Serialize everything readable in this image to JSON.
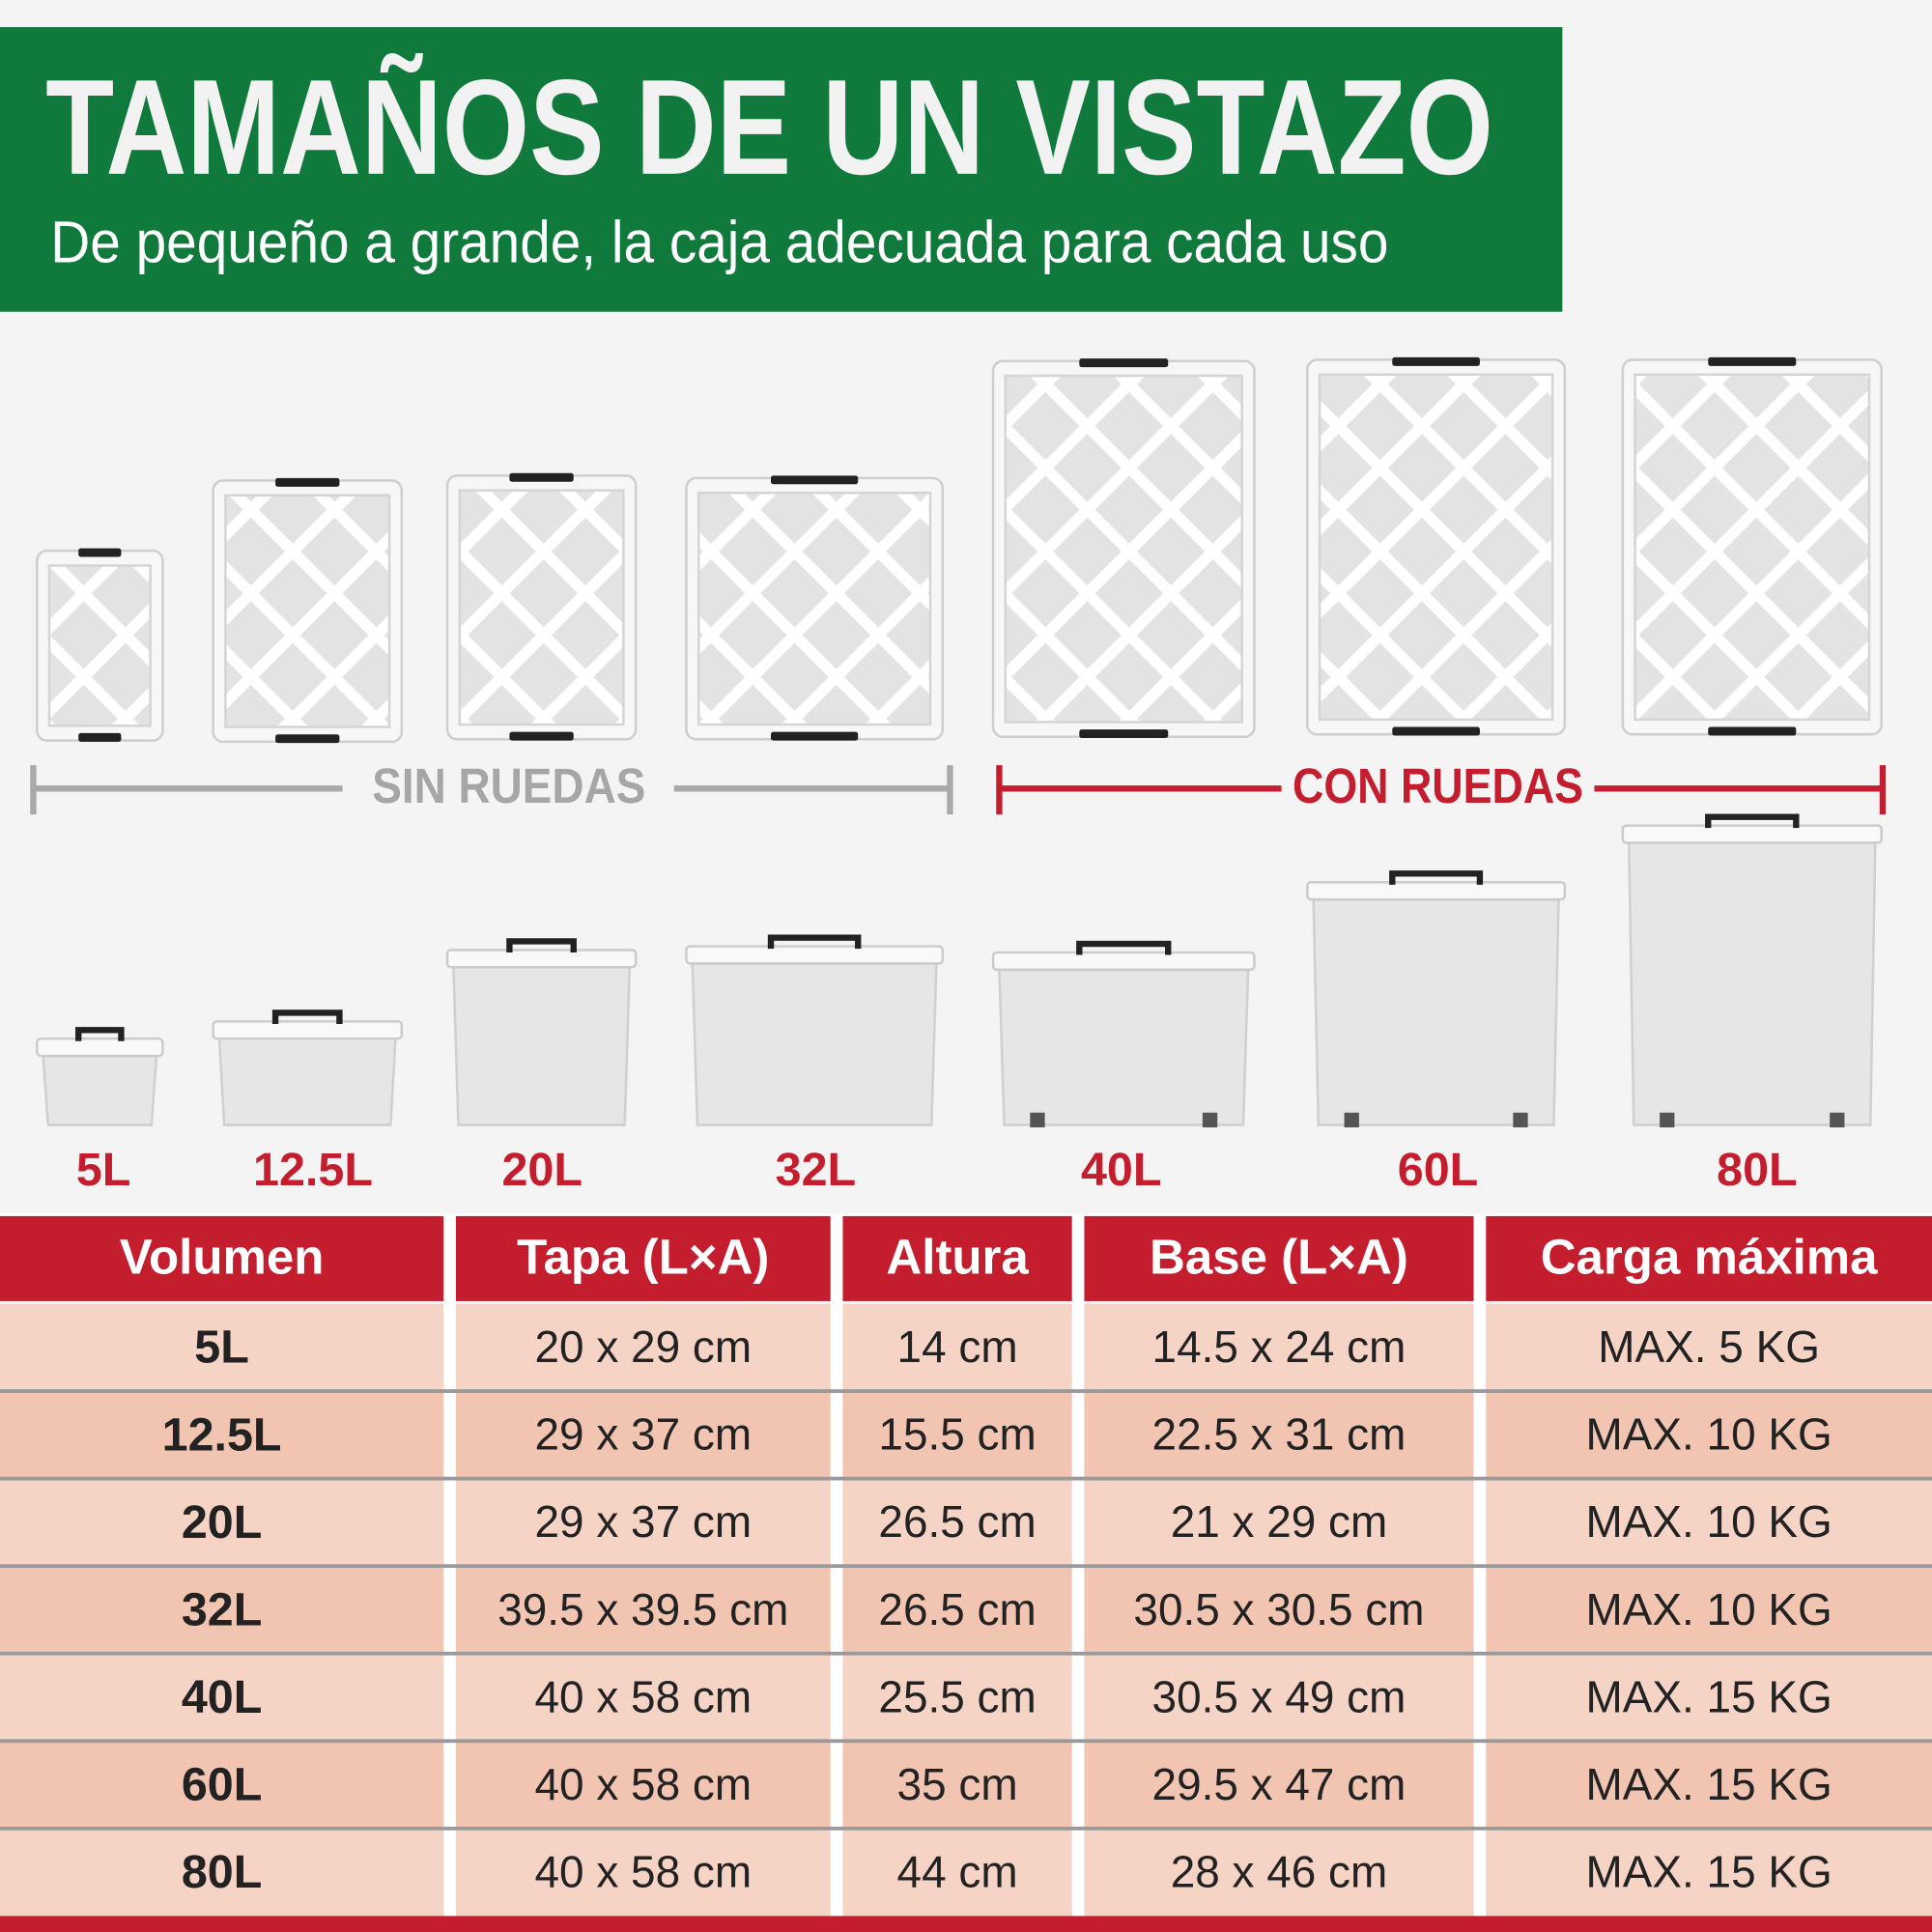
{
  "header": {
    "title": "TAMAÑOS DE UN VISTAZO",
    "subtitle": "De pequeño a grande, la caja adecuada para cada uso"
  },
  "groups": [
    "SIN RUEDAS",
    "CON RUEDAS"
  ],
  "sizes": [
    "5L",
    "12.5L",
    "20L",
    "32L",
    "40L",
    "60L",
    "80L"
  ],
  "table": {
    "header": [
      "Volumen",
      "Tapa (L×A)",
      "Altura",
      "Base (L×A)",
      "Carga máxima"
    ],
    "rows": [
      [
        "5L",
        "20 x 29 cm",
        "14 cm",
        "14.5 x 24 cm",
        "MAX. 5 KG"
      ],
      [
        "12.5L",
        "29 x 37 cm",
        "15.5 cm",
        "22.5 x 31 cm",
        "MAX. 10 KG"
      ],
      [
        "20L",
        "29 x 37 cm",
        "26.5 cm",
        "21 x 29 cm",
        "MAX. 10 KG"
      ],
      [
        "32L",
        "39.5 x 39.5 cm",
        "26.5 cm",
        "30.5 x 30.5 cm",
        "MAX. 10 KG"
      ],
      [
        "40L",
        "40 x 58 cm",
        "25.5 cm",
        "30.5 x 49 cm",
        "MAX. 15 KG"
      ],
      [
        "60L",
        "40 x 58 cm",
        "35 cm",
        "29.5 x 47 cm",
        "MAX. 15 KG"
      ],
      [
        "80L",
        "40 x 58 cm",
        "44 cm",
        "28 x 46 cm",
        "MAX. 15 KG"
      ]
    ]
  }
}
